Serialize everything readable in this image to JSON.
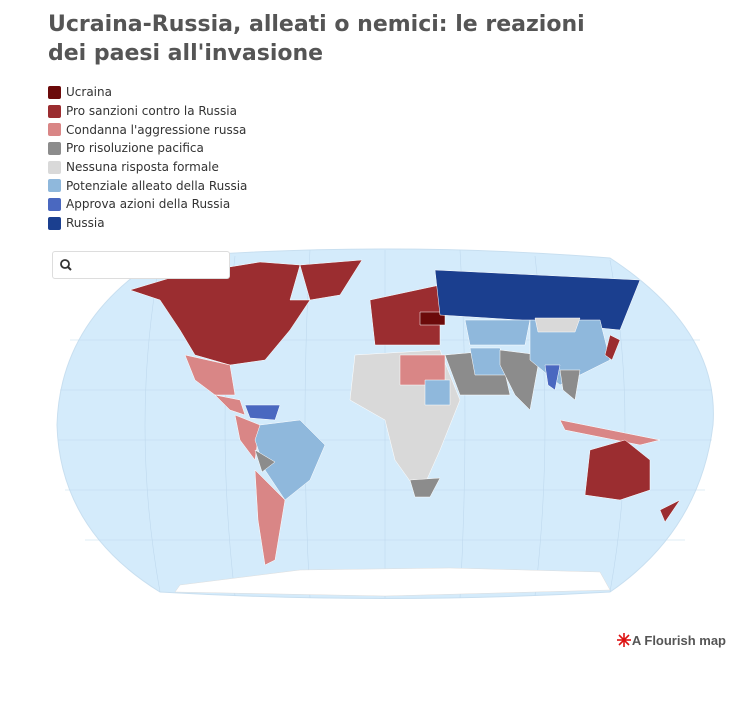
{
  "header": {
    "title": "Ucraina-Russia, alleati o nemici: le reazioni dei paesi all'invasione"
  },
  "legend": [
    {
      "label": "Ucraina",
      "color": "#6b0a0a"
    },
    {
      "label": "Pro sanzioni contro la Russia",
      "color": "#9b2d30"
    },
    {
      "label": "Condanna l'aggressione russa",
      "color": "#d98686"
    },
    {
      "label": "Pro risoluzione pacifica",
      "color": "#8c8c8c"
    },
    {
      "label": "Nessuna risposta formale",
      "color": "#d9d9d9"
    },
    {
      "label": "Potenziale alleato della Russia",
      "color": "#8fb8dc"
    },
    {
      "label": "Approva azioni della Russia",
      "color": "#4a68c0"
    },
    {
      "label": "Russia",
      "color": "#1b3f8f"
    }
  ],
  "footer": {
    "credit": "A Flourish map"
  }
}
